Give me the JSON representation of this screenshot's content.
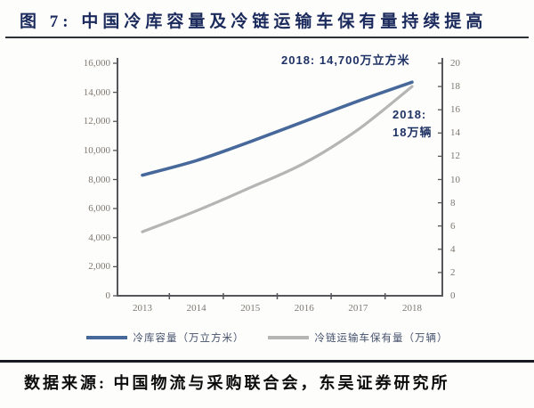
{
  "header": {
    "title": "图 7:  中国冷库容量及冷链运输车保有量持续提高"
  },
  "chart_data": {
    "type": "line",
    "title": "中国冷库容量及冷链运输车保有量持续提高",
    "categories": [
      "2013",
      "2014",
      "2015",
      "2016",
      "2017",
      "2018"
    ],
    "series": [
      {
        "name": "冷库容量（万立方米）",
        "axis": "left",
        "color": "#47689a",
        "line_width": 3.6,
        "values": [
          8300,
          9300,
          10600,
          12000,
          13400,
          14700
        ]
      },
      {
        "name": "冷链运输车保有量（万辆）",
        "axis": "right",
        "color": "#b5b5b5",
        "line_width": 3.2,
        "values": [
          5.5,
          7.3,
          9.3,
          11.4,
          14.3,
          18
        ]
      }
    ],
    "left_axis": {
      "min": 0,
      "max": 16000,
      "step": 2000,
      "tick_labels": [
        "0",
        "2,000",
        "4,000",
        "6,000",
        "8,000",
        "10,000",
        "12,000",
        "14,000",
        "16,000"
      ]
    },
    "right_axis": {
      "min": 0,
      "max": 20,
      "step": 2,
      "tick_labels": [
        "0",
        "2",
        "4",
        "6",
        "8",
        "10",
        "12",
        "14",
        "16",
        "18",
        "20"
      ]
    },
    "xlabel": "",
    "ylabel": "",
    "grid": false,
    "legend_position": "bottom",
    "annotations": [
      {
        "id": "capacity-2018",
        "text": "2018:  14,700万立方米"
      },
      {
        "id": "vehicles-2018",
        "lines": [
          "2018:",
          "18万辆"
        ]
      }
    ],
    "axis_color": "#55555a",
    "tick_label_color": "#7d786f"
  },
  "footer": {
    "source": "数据来源:  中国物流与采购联合会，东吴证券研究所"
  }
}
